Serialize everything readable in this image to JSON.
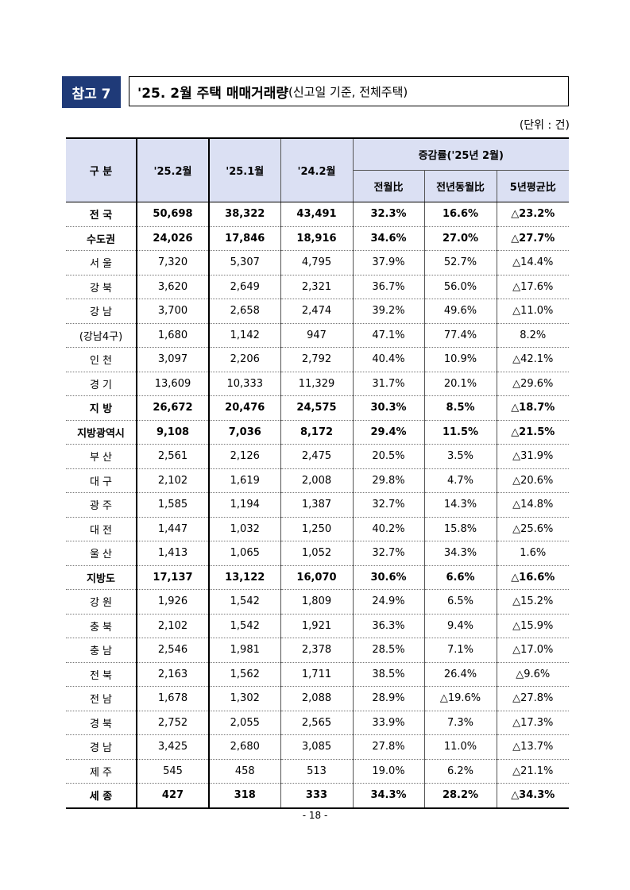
{
  "title": {
    "ref_label": "참고 7",
    "main": "'25. 2월 주택 매매거래량",
    "sub": "(신고일 기준, 전체주택)"
  },
  "unit": "(단위 : 건)",
  "table": {
    "headers": {
      "region": "구 분",
      "cur": "'25.2월",
      "prev_month": "'25.1월",
      "prev_year": "'24.2월",
      "growth_group": "증감률('25년 2월)",
      "mom": "전월比",
      "yoy": "전년동월比",
      "avg5": "5년평균比"
    },
    "rows": [
      {
        "name": "전 국",
        "cur": "50,698",
        "m1": "38,322",
        "y1": "43,491",
        "mom": "32.3%",
        "yoy": "16.6%",
        "avg": "△23.2%",
        "bold": true
      },
      {
        "name": "수도권",
        "cur": "24,026",
        "m1": "17,846",
        "y1": "18,916",
        "mom": "34.6%",
        "yoy": "27.0%",
        "avg": "△27.7%",
        "bold": true
      },
      {
        "name": "서 울",
        "cur": "7,320",
        "m1": "5,307",
        "y1": "4,795",
        "mom": "37.9%",
        "yoy": "52.7%",
        "avg": "△14.4%",
        "bold": false
      },
      {
        "name": "강 북",
        "cur": "3,620",
        "m1": "2,649",
        "y1": "2,321",
        "mom": "36.7%",
        "yoy": "56.0%",
        "avg": "△17.6%",
        "bold": false
      },
      {
        "name": "강 남",
        "cur": "3,700",
        "m1": "2,658",
        "y1": "2,474",
        "mom": "39.2%",
        "yoy": "49.6%",
        "avg": "△11.0%",
        "bold": false
      },
      {
        "name": "(강남4구)",
        "cur": "1,680",
        "m1": "1,142",
        "y1": "947",
        "mom": "47.1%",
        "yoy": "77.4%",
        "avg": "8.2%",
        "bold": false
      },
      {
        "name": "인 천",
        "cur": "3,097",
        "m1": "2,206",
        "y1": "2,792",
        "mom": "40.4%",
        "yoy": "10.9%",
        "avg": "△42.1%",
        "bold": false
      },
      {
        "name": "경 기",
        "cur": "13,609",
        "m1": "10,333",
        "y1": "11,329",
        "mom": "31.7%",
        "yoy": "20.1%",
        "avg": "△29.6%",
        "bold": false
      },
      {
        "name": "지 방",
        "cur": "26,672",
        "m1": "20,476",
        "y1": "24,575",
        "mom": "30.3%",
        "yoy": "8.5%",
        "avg": "△18.7%",
        "bold": true
      },
      {
        "name": "지방광역시",
        "cur": "9,108",
        "m1": "7,036",
        "y1": "8,172",
        "mom": "29.4%",
        "yoy": "11.5%",
        "avg": "△21.5%",
        "bold": true
      },
      {
        "name": "부 산",
        "cur": "2,561",
        "m1": "2,126",
        "y1": "2,475",
        "mom": "20.5%",
        "yoy": "3.5%",
        "avg": "△31.9%",
        "bold": false
      },
      {
        "name": "대 구",
        "cur": "2,102",
        "m1": "1,619",
        "y1": "2,008",
        "mom": "29.8%",
        "yoy": "4.7%",
        "avg": "△20.6%",
        "bold": false
      },
      {
        "name": "광 주",
        "cur": "1,585",
        "m1": "1,194",
        "y1": "1,387",
        "mom": "32.7%",
        "yoy": "14.3%",
        "avg": "△14.8%",
        "bold": false
      },
      {
        "name": "대 전",
        "cur": "1,447",
        "m1": "1,032",
        "y1": "1,250",
        "mom": "40.2%",
        "yoy": "15.8%",
        "avg": "△25.6%",
        "bold": false
      },
      {
        "name": "울 산",
        "cur": "1,413",
        "m1": "1,065",
        "y1": "1,052",
        "mom": "32.7%",
        "yoy": "34.3%",
        "avg": "1.6%",
        "bold": false
      },
      {
        "name": "지방도",
        "cur": "17,137",
        "m1": "13,122",
        "y1": "16,070",
        "mom": "30.6%",
        "yoy": "6.6%",
        "avg": "△16.6%",
        "bold": true
      },
      {
        "name": "강 원",
        "cur": "1,926",
        "m1": "1,542",
        "y1": "1,809",
        "mom": "24.9%",
        "yoy": "6.5%",
        "avg": "△15.2%",
        "bold": false
      },
      {
        "name": "충 북",
        "cur": "2,102",
        "m1": "1,542",
        "y1": "1,921",
        "mom": "36.3%",
        "yoy": "9.4%",
        "avg": "△15.9%",
        "bold": false
      },
      {
        "name": "충 남",
        "cur": "2,546",
        "m1": "1,981",
        "y1": "2,378",
        "mom": "28.5%",
        "yoy": "7.1%",
        "avg": "△17.0%",
        "bold": false
      },
      {
        "name": "전 북",
        "cur": "2,163",
        "m1": "1,562",
        "y1": "1,711",
        "mom": "38.5%",
        "yoy": "26.4%",
        "avg": "△9.6%",
        "bold": false
      },
      {
        "name": "전 남",
        "cur": "1,678",
        "m1": "1,302",
        "y1": "2,088",
        "mom": "28.9%",
        "yoy": "△19.6%",
        "avg": "△27.8%",
        "bold": false
      },
      {
        "name": "경 북",
        "cur": "2,752",
        "m1": "2,055",
        "y1": "2,565",
        "mom": "33.9%",
        "yoy": "7.3%",
        "avg": "△17.3%",
        "bold": false
      },
      {
        "name": "경 남",
        "cur": "3,425",
        "m1": "2,680",
        "y1": "3,085",
        "mom": "27.8%",
        "yoy": "11.0%",
        "avg": "△13.7%",
        "bold": false
      },
      {
        "name": "제 주",
        "cur": "545",
        "m1": "458",
        "y1": "513",
        "mom": "19.0%",
        "yoy": "6.2%",
        "avg": "△21.1%",
        "bold": false
      },
      {
        "name": "세 종",
        "cur": "427",
        "m1": "318",
        "y1": "333",
        "mom": "34.3%",
        "yoy": "28.2%",
        "avg": "△34.3%",
        "bold": true
      }
    ]
  },
  "footer": "- 18 -"
}
